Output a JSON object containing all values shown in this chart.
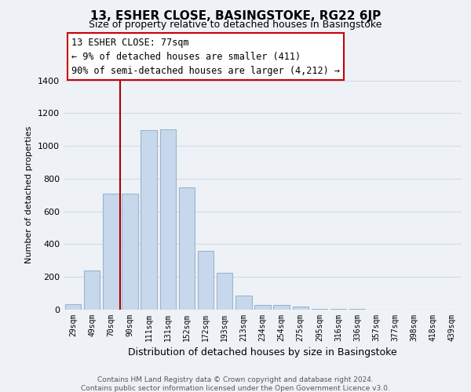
{
  "title": "13, ESHER CLOSE, BASINGSTOKE, RG22 6JP",
  "subtitle": "Size of property relative to detached houses in Basingstoke",
  "xlabel": "Distribution of detached houses by size in Basingstoke",
  "ylabel": "Number of detached properties",
  "bar_labels": [
    "29sqm",
    "49sqm",
    "70sqm",
    "90sqm",
    "111sqm",
    "131sqm",
    "152sqm",
    "172sqm",
    "193sqm",
    "213sqm",
    "234sqm",
    "254sqm",
    "275sqm",
    "295sqm",
    "316sqm",
    "336sqm",
    "357sqm",
    "377sqm",
    "398sqm",
    "418sqm",
    "439sqm"
  ],
  "bar_values": [
    35,
    240,
    710,
    710,
    1095,
    1100,
    745,
    360,
    225,
    85,
    30,
    30,
    20,
    5,
    5,
    3,
    2,
    1,
    1,
    1,
    1
  ],
  "bar_color": "#c8d8ec",
  "bar_edge_color": "#9ab4cc",
  "vline_color": "#aa0000",
  "annotation_text": "13 ESHER CLOSE: 77sqm\n← 9% of detached houses are smaller (411)\n90% of semi-detached houses are larger (4,212) →",
  "annotation_box_color": "#ffffff",
  "annotation_box_edge": "#cc0000",
  "ylim": [
    0,
    1400
  ],
  "yticks": [
    0,
    200,
    400,
    600,
    800,
    1000,
    1200,
    1400
  ],
  "bg_color": "#eef2f7",
  "grid_color": "#d0dae8",
  "footer_line1": "Contains HM Land Registry data © Crown copyright and database right 2024.",
  "footer_line2": "Contains public sector information licensed under the Open Government Licence v3.0."
}
